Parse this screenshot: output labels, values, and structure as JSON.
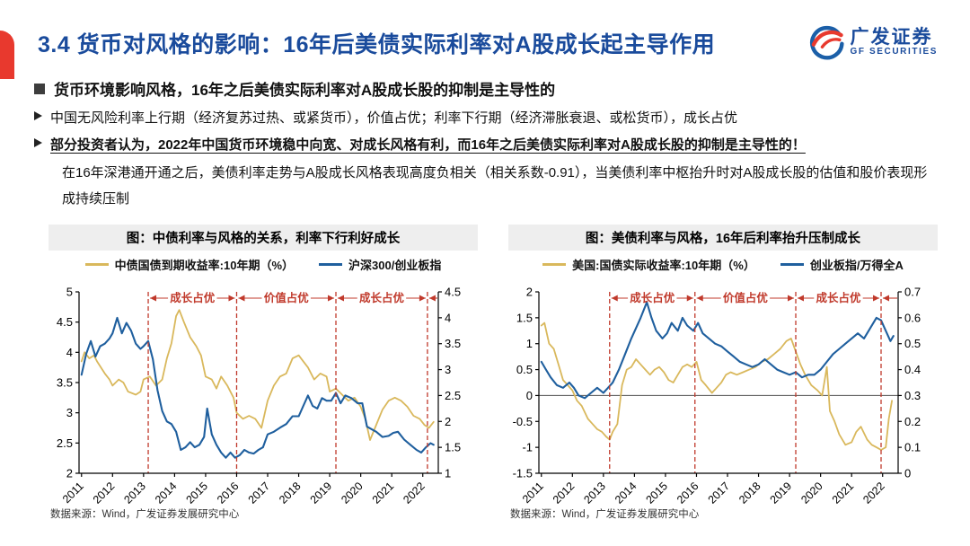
{
  "slide": {
    "title": "3.4 货币对风格的影响：16年后美债实际利率对A股成长起主导作用",
    "logo": {
      "cn": "广发证券",
      "en": "GF SECURITIES"
    },
    "bullet1": "货币环境影响风格，16年之后美债实际利率对A股成长股的抑制是主导性的",
    "bullet2": "中国无风险利率上行期（经济复苏过热、或紧货币），价值占优；利率下行期（经济滞胀衰退、或松货币），成长占优",
    "bullet3": "部分投资者认为，2022年中国货币环境稳中向宽、对成长风格有利，而16年之后美债实际利率对A股成长股的抑制是主导性的！",
    "paragraph": "在16年深港通开通之后，美债利率走势与A股成长风格表现高度负相关（相关系数-0.91），当美债利率中枢抬升时对A股成长股的估值和股价表现形成持续压制"
  },
  "colors": {
    "accent_red": "#E8392E",
    "title_blue": "#1A4B9C",
    "line_yellow": "#D9B85C",
    "line_blue": "#1F5F9E",
    "regime_red": "#C0392B",
    "panel_gray": "#EEEEEE"
  },
  "chart_data": [
    {
      "type": "line",
      "title": "图：中债利率与风格的关系，利率下行利好成长",
      "source": "数据来源：Wind，广发证券发展研究中心",
      "xlim": [
        2010.92,
        2022.5
      ],
      "x_ticks": [
        "2011",
        "2012",
        "2013",
        "2014",
        "2015",
        "2016",
        "2017",
        "2018",
        "2019",
        "2020",
        "2021",
        "2022"
      ],
      "y_left": {
        "min": 2,
        "max": 5,
        "ticks": [
          "2",
          "2.5",
          "3",
          "3.5",
          "4",
          "4.5",
          "5"
        ]
      },
      "y_right": {
        "min": 1,
        "max": 4.5,
        "ticks": [
          "1",
          "1.5",
          "2",
          "2.5",
          "3",
          "3.5",
          "4",
          "4.5"
        ]
      },
      "zero_line": false,
      "regimes": [
        {
          "from": 2013.15,
          "to": 2016.0,
          "label": "成长占优"
        },
        {
          "from": 2016.0,
          "to": 2019.2,
          "label": "价值占优"
        },
        {
          "from": 2019.2,
          "to": 2022.15,
          "label": "成长占优"
        }
      ],
      "series": [
        {
          "name": "中债国债到期收益率:10年期（%）",
          "axis": "left",
          "color": "#D9B85C",
          "x": [
            2011.0,
            2011.1,
            2011.25,
            2011.4,
            2011.5,
            2011.75,
            2011.9,
            2012.0,
            2012.2,
            2012.35,
            2012.5,
            2012.75,
            2012.9,
            2013.0,
            2013.2,
            2013.4,
            2013.6,
            2013.75,
            2013.9,
            2014.05,
            2014.15,
            2014.3,
            2014.5,
            2014.7,
            2014.85,
            2015.0,
            2015.2,
            2015.35,
            2015.5,
            2015.7,
            2015.9,
            2016.0,
            2016.2,
            2016.4,
            2016.6,
            2016.8,
            2017.0,
            2017.2,
            2017.4,
            2017.6,
            2017.8,
            2018.0,
            2018.15,
            2018.3,
            2018.5,
            2018.7,
            2018.9,
            2019.0,
            2019.2,
            2019.4,
            2019.6,
            2019.8,
            2020.0,
            2020.15,
            2020.3,
            2020.5,
            2020.7,
            2020.9,
            2021.1,
            2021.3,
            2021.5,
            2021.7,
            2021.9,
            2022.05,
            2022.2,
            2022.35
          ],
          "y": [
            3.85,
            4.0,
            3.9,
            3.95,
            3.85,
            3.65,
            3.55,
            3.45,
            3.55,
            3.5,
            3.35,
            3.3,
            3.35,
            3.55,
            3.6,
            3.45,
            3.55,
            3.9,
            4.15,
            4.6,
            4.7,
            4.5,
            4.25,
            4.1,
            3.95,
            3.6,
            3.55,
            3.4,
            3.6,
            3.45,
            3.25,
            3.0,
            2.9,
            2.95,
            2.9,
            2.75,
            3.2,
            3.45,
            3.6,
            3.65,
            3.9,
            3.95,
            3.85,
            3.75,
            3.55,
            3.65,
            3.6,
            3.35,
            3.4,
            3.3,
            3.2,
            3.25,
            3.1,
            2.9,
            2.55,
            2.8,
            3.05,
            3.2,
            3.25,
            3.2,
            3.1,
            2.95,
            2.9,
            2.8,
            2.75,
            2.85
          ]
        },
        {
          "name": "沪深300/创业板指",
          "axis": "right",
          "color": "#1F5F9E",
          "x": [
            2011.0,
            2011.15,
            2011.3,
            2011.45,
            2011.6,
            2011.75,
            2011.9,
            2012.0,
            2012.15,
            2012.3,
            2012.45,
            2012.6,
            2012.75,
            2012.9,
            2013.0,
            2013.15,
            2013.3,
            2013.45,
            2013.6,
            2013.75,
            2013.9,
            2014.05,
            2014.2,
            2014.35,
            2014.5,
            2014.65,
            2014.8,
            2014.95,
            2015.05,
            2015.2,
            2015.35,
            2015.5,
            2015.65,
            2015.8,
            2015.95,
            2016.1,
            2016.25,
            2016.4,
            2016.55,
            2016.7,
            2016.85,
            2017.0,
            2017.2,
            2017.4,
            2017.6,
            2017.8,
            2018.0,
            2018.15,
            2018.3,
            2018.45,
            2018.6,
            2018.75,
            2018.9,
            2019.05,
            2019.2,
            2019.35,
            2019.5,
            2019.7,
            2019.9,
            2020.05,
            2020.2,
            2020.35,
            2020.5,
            2020.7,
            2020.9,
            2021.05,
            2021.2,
            2021.4,
            2021.6,
            2021.8,
            2021.95,
            2022.1,
            2022.25,
            2022.35
          ],
          "y": [
            2.9,
            3.3,
            3.55,
            3.25,
            3.45,
            3.5,
            3.6,
            3.7,
            4.0,
            3.7,
            3.9,
            3.75,
            3.5,
            3.4,
            3.45,
            3.55,
            3.2,
            2.6,
            2.2,
            2.0,
            1.95,
            1.8,
            1.45,
            1.5,
            1.6,
            1.5,
            1.55,
            1.7,
            2.25,
            1.75,
            1.55,
            1.4,
            1.3,
            1.4,
            1.3,
            1.35,
            1.45,
            1.4,
            1.38,
            1.45,
            1.5,
            1.75,
            1.8,
            1.88,
            1.95,
            2.1,
            2.1,
            2.3,
            2.5,
            2.3,
            2.25,
            2.45,
            2.4,
            2.4,
            2.55,
            2.35,
            2.5,
            2.45,
            2.35,
            2.35,
            1.9,
            1.85,
            1.8,
            1.7,
            1.72,
            1.78,
            1.8,
            1.65,
            1.55,
            1.45,
            1.4,
            1.5,
            1.58,
            1.55
          ]
        }
      ]
    },
    {
      "type": "line",
      "title": "图：美债利率与风格，16年后利率抬升压制成长",
      "source": "数据来源：Wind，广发证券发展研究中心",
      "xlim": [
        2010.92,
        2022.5
      ],
      "x_ticks": [
        "2011",
        "2012",
        "2013",
        "2014",
        "2015",
        "2016",
        "2017",
        "2018",
        "2019",
        "2020",
        "2021",
        "2022"
      ],
      "y_left": {
        "min": -1.5,
        "max": 2,
        "ticks": [
          "-1.5",
          "-1",
          "-0.5",
          "0",
          "0.5",
          "1",
          "1.5",
          "2"
        ]
      },
      "y_right": {
        "min": 0,
        "max": 0.7,
        "ticks": [
          "0",
          "0.1",
          "0.2",
          "0.3",
          "0.4",
          "0.5",
          "0.6",
          "0.7"
        ]
      },
      "zero_line": true,
      "regimes": [
        {
          "from": 2013.2,
          "to": 2015.95,
          "label": "成长占优"
        },
        {
          "from": 2015.95,
          "to": 2019.2,
          "label": "价值占优"
        },
        {
          "from": 2019.2,
          "to": 2021.95,
          "label": "成长占优"
        }
      ],
      "series": [
        {
          "name": "美国:国债实际收益率:10年期（%）",
          "axis": "left",
          "color": "#D9B85C",
          "x": [
            2011.0,
            2011.1,
            2011.25,
            2011.4,
            2011.55,
            2011.7,
            2011.85,
            2012.0,
            2012.15,
            2012.3,
            2012.5,
            2012.65,
            2012.8,
            2012.95,
            2013.1,
            2013.2,
            2013.3,
            2013.45,
            2013.6,
            2013.75,
            2013.9,
            2014.05,
            2014.2,
            2014.35,
            2014.5,
            2014.65,
            2014.8,
            2014.95,
            2015.1,
            2015.25,
            2015.4,
            2015.55,
            2015.7,
            2015.85,
            2016.0,
            2016.15,
            2016.3,
            2016.5,
            2016.65,
            2016.8,
            2016.95,
            2017.1,
            2017.3,
            2017.5,
            2017.7,
            2017.9,
            2018.1,
            2018.3,
            2018.5,
            2018.7,
            2018.9,
            2019.05,
            2019.2,
            2019.35,
            2019.5,
            2019.7,
            2019.9,
            2020.05,
            2020.2,
            2020.3,
            2020.45,
            2020.6,
            2020.8,
            2021.0,
            2021.15,
            2021.3,
            2021.5,
            2021.65,
            2021.8,
            2021.95,
            2022.1,
            2022.2,
            2022.3
          ],
          "y": [
            1.35,
            1.4,
            1.0,
            0.9,
            0.6,
            0.3,
            0.2,
            0.1,
            -0.1,
            -0.2,
            -0.45,
            -0.55,
            -0.65,
            -0.7,
            -0.8,
            -0.85,
            -0.7,
            -0.55,
            0.2,
            0.5,
            0.55,
            0.7,
            0.6,
            0.5,
            0.4,
            0.5,
            0.55,
            0.45,
            0.3,
            0.25,
            0.4,
            0.55,
            0.6,
            0.55,
            0.65,
            0.3,
            0.2,
            0.05,
            0.15,
            0.25,
            0.4,
            0.45,
            0.4,
            0.45,
            0.5,
            0.55,
            0.65,
            0.7,
            0.8,
            0.9,
            1.05,
            1.1,
            0.85,
            0.6,
            0.4,
            0.2,
            0.1,
            0.0,
            0.55,
            -0.3,
            -0.5,
            -0.75,
            -0.95,
            -0.9,
            -0.7,
            -0.6,
            -0.85,
            -0.95,
            -1.0,
            -1.05,
            -1.0,
            -0.45,
            -0.1
          ]
        },
        {
          "name": "创业板指/万得全A",
          "axis": "right",
          "color": "#1F5F9E",
          "x": [
            2011.0,
            2011.15,
            2011.3,
            2011.5,
            2011.7,
            2011.9,
            2012.05,
            2012.2,
            2012.4,
            2012.6,
            2012.8,
            2013.0,
            2013.15,
            2013.3,
            2013.5,
            2013.7,
            2013.9,
            2014.05,
            2014.2,
            2014.4,
            2014.55,
            2014.7,
            2014.9,
            2015.05,
            2015.2,
            2015.4,
            2015.55,
            2015.7,
            2015.9,
            2016.05,
            2016.2,
            2016.4,
            2016.6,
            2016.8,
            2017.0,
            2017.2,
            2017.4,
            2017.6,
            2017.8,
            2018.0,
            2018.2,
            2018.4,
            2018.6,
            2018.8,
            2019.0,
            2019.2,
            2019.4,
            2019.6,
            2019.8,
            2020.0,
            2020.2,
            2020.4,
            2020.6,
            2020.8,
            2021.0,
            2021.2,
            2021.4,
            2021.6,
            2021.8,
            2021.95,
            2022.1,
            2022.25,
            2022.35
          ],
          "y": [
            0.43,
            0.4,
            0.37,
            0.34,
            0.33,
            0.35,
            0.33,
            0.3,
            0.29,
            0.31,
            0.33,
            0.31,
            0.33,
            0.35,
            0.4,
            0.46,
            0.52,
            0.56,
            0.6,
            0.66,
            0.6,
            0.55,
            0.52,
            0.54,
            0.58,
            0.55,
            0.6,
            0.57,
            0.55,
            0.58,
            0.54,
            0.52,
            0.5,
            0.49,
            0.47,
            0.45,
            0.43,
            0.42,
            0.41,
            0.42,
            0.44,
            0.42,
            0.4,
            0.39,
            0.38,
            0.39,
            0.37,
            0.38,
            0.38,
            0.4,
            0.43,
            0.46,
            0.48,
            0.5,
            0.52,
            0.54,
            0.52,
            0.56,
            0.6,
            0.59,
            0.55,
            0.51,
            0.53
          ]
        }
      ]
    }
  ]
}
